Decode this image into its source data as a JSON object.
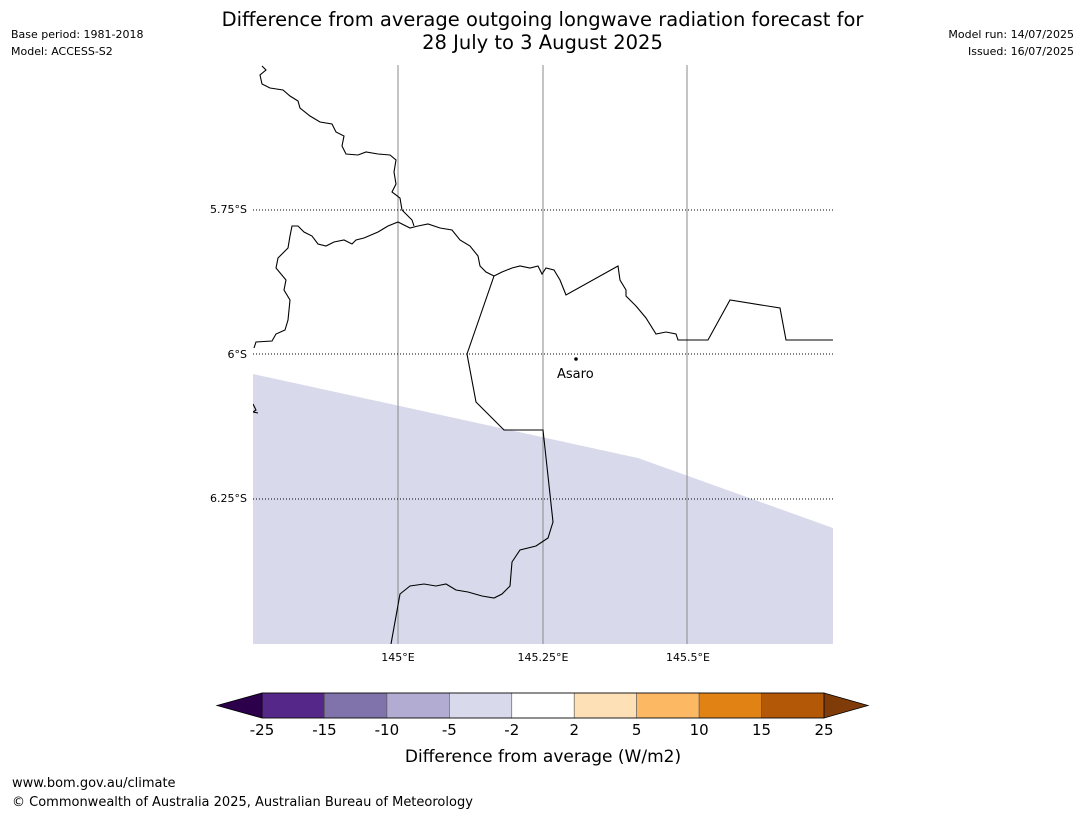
{
  "header": {
    "title_line1": "Difference from average outgoing longwave radiation forecast for",
    "title_line2": "28 July to 3 August 2025",
    "base_period": "Base period: 1981-2018",
    "model": "Model: ACCESS-S2",
    "model_run": "Model run: 14/07/2025",
    "issued": "Issued: 16/07/2025"
  },
  "map": {
    "place_label": "Asaro",
    "lat_labels": [
      "5.75°S",
      "6°S",
      "6.25°S"
    ],
    "lon_labels": [
      "145°E",
      "145.25°E",
      "145.5°E"
    ],
    "shaded_category": "-5 to -2"
  },
  "colorbar": {
    "label": "Difference from average (W/m2)",
    "ticks": [
      "-25",
      "-15",
      "-10",
      "-5",
      "-2",
      "2",
      "5",
      "10",
      "15",
      "25"
    ],
    "under_color": "#2d004b",
    "over_color": "#7f3b08",
    "colors": [
      "#542788",
      "#8073ac",
      "#b2abd2",
      "#d8daeb",
      "#ffffff",
      "#fee0b6",
      "#fdb863",
      "#e08214",
      "#b35806"
    ]
  },
  "footer": {
    "url": "www.bom.gov.au/climate",
    "copyright": "© Commonwealth of Australia 2025, Australian Bureau of Meteorology"
  }
}
